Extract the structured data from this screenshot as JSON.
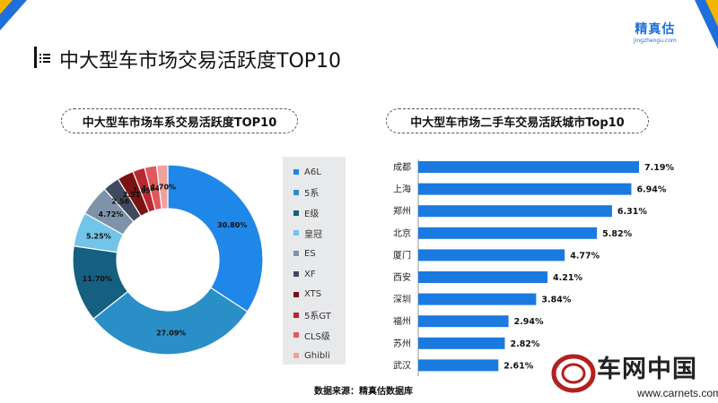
{
  "brand": {
    "name": "精真估",
    "subtitle": "jingzhengu.com"
  },
  "page": {
    "title": "中大型车市场交易活跃度TOP10"
  },
  "source": "数据来源：精真估数据库",
  "watermark": {
    "name": "车网中国",
    "url": "www.carnets.com"
  },
  "colors": {
    "accent": "#1e6fd9",
    "accent2": "#f5b400",
    "bar": "#1a7ae0"
  },
  "chart_data": [
    {
      "type": "pie",
      "variant": "donut",
      "title": "中大型车市场车系交易活跃度TOP10",
      "categories": [
        "A6L",
        "5系",
        "E级",
        "皇冠",
        "ES",
        "XF",
        "XTS",
        "5系GT",
        "CLS级",
        "Ghibli"
      ],
      "values": [
        30.8,
        27.09,
        11.7,
        5.25,
        4.72,
        2.56,
        2.51,
        1.85,
        1.84,
        1.7
      ],
      "labels": [
        "30.80%",
        "27.09%",
        "11.70%",
        "5.25%",
        "4.72%",
        "2.56%",
        "2.51%",
        "1.85%",
        "1.84%",
        "1.70%"
      ],
      "colors": [
        "#1f87e8",
        "#2b8fc7",
        "#155f80",
        "#72c4e8",
        "#7e93a8",
        "#3f4a5e",
        "#7a1414",
        "#b8282f",
        "#e0585c",
        "#eea29c"
      ],
      "legend": "right"
    },
    {
      "type": "bar",
      "orientation": "horizontal",
      "title": "中大型车市场二手车交易活跃城市Top10",
      "categories": [
        "成都",
        "上海",
        "郑州",
        "北京",
        "厦门",
        "西安",
        "深圳",
        "福州",
        "苏州",
        "武汉"
      ],
      "values": [
        7.19,
        6.94,
        6.31,
        5.82,
        4.77,
        4.21,
        3.84,
        2.94,
        2.82,
        2.61
      ],
      "labels": [
        "7.19%",
        "6.94%",
        "6.31%",
        "5.82%",
        "4.77%",
        "4.21%",
        "3.84%",
        "2.94%",
        "2.82%",
        "2.61%"
      ],
      "xlim": [
        0,
        7.6
      ]
    }
  ]
}
